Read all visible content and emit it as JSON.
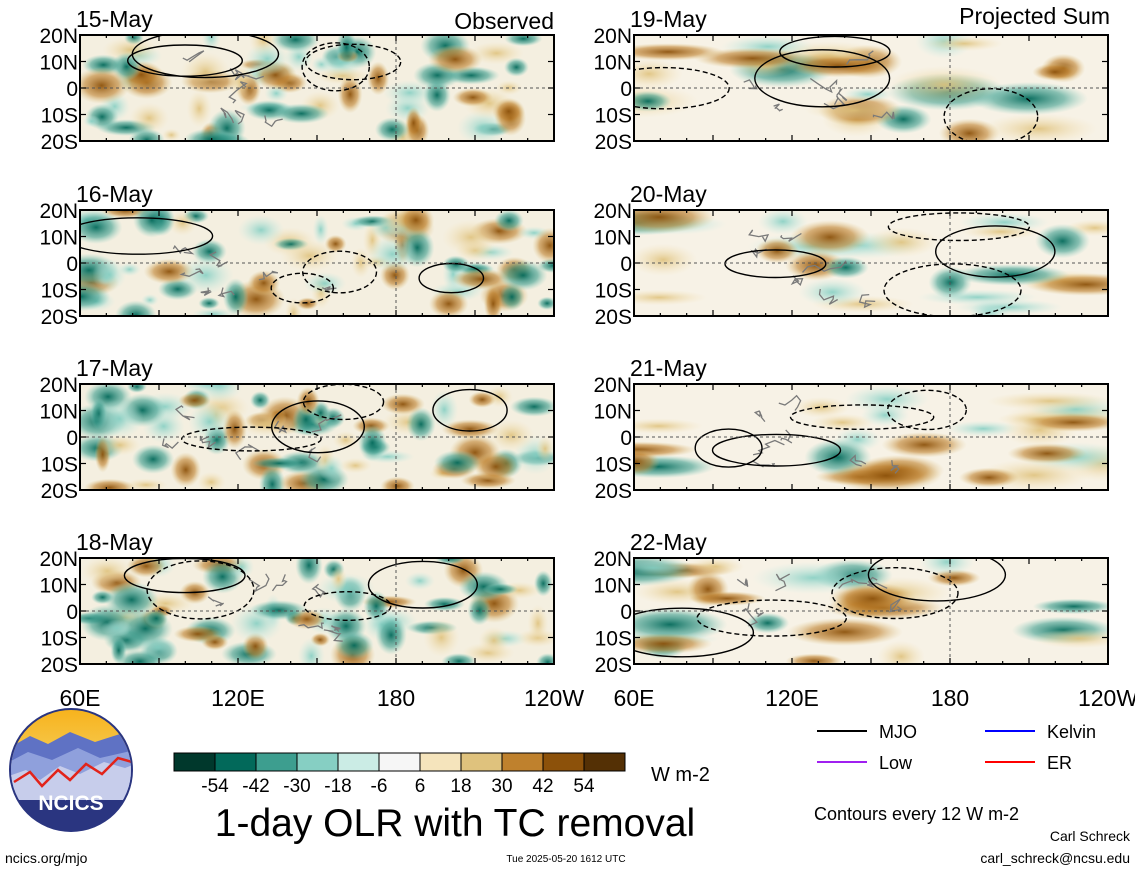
{
  "labels": {
    "observed": "Observed",
    "projected": "Projected Sum"
  },
  "panels": {
    "left": [
      {
        "date": "15-May"
      },
      {
        "date": "16-May"
      },
      {
        "date": "17-May"
      },
      {
        "date": "18-May"
      }
    ],
    "right": [
      {
        "date": "19-May"
      },
      {
        "date": "20-May"
      },
      {
        "date": "21-May"
      },
      {
        "date": "22-May"
      }
    ]
  },
  "lat_ticks": [
    "20N",
    "10N",
    "0",
    "10S",
    "20S"
  ],
  "lon_ticks": [
    "60E",
    "120E",
    "180",
    "120W"
  ],
  "colorbar": {
    "ticks": [
      "-54",
      "-42",
      "-30",
      "-18",
      "-6",
      "6",
      "18",
      "30",
      "42",
      "54"
    ],
    "colors": [
      "#00382c",
      "#02695a",
      "#3d9e8f",
      "#86cfc3",
      "#cbece5",
      "#f6f6f6",
      "#f5e4bc",
      "#dfc27d",
      "#bf812d",
      "#8c510a",
      "#543005"
    ],
    "units": "W m-2"
  },
  "title": "1-day OLR with TC removal",
  "legend": [
    {
      "label": "MJO",
      "color": "#000000"
    },
    {
      "label": "Kelvin",
      "color": "#0000ff"
    },
    {
      "label": "Low",
      "color": "#a020f0"
    },
    {
      "label": "ER",
      "color": "#ff0000"
    }
  ],
  "contours_note": "Contours every 12 W m-2",
  "author": {
    "name": "Carl Schreck",
    "email": "carl_schreck@ncsu.edu"
  },
  "footer": {
    "url": "ncics.org/mjo",
    "timestamp": "Tue 2025-05-20 1612 UTC"
  },
  "logo": {
    "text": "NCICS"
  }
}
